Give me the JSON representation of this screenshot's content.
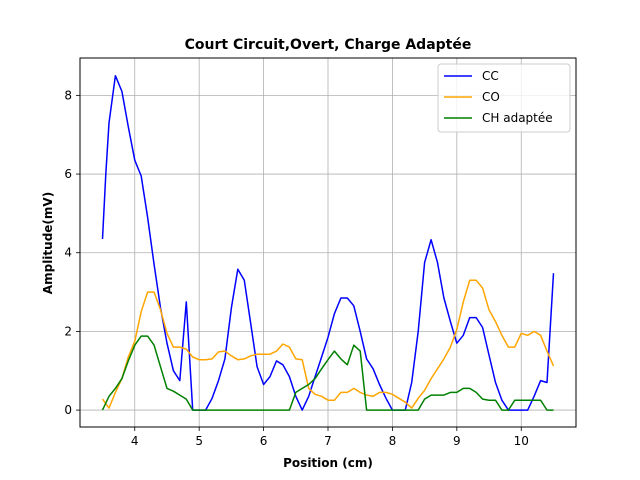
{
  "chart_data": {
    "type": "line",
    "title": "Court Circuit,Overt, Charge Adaptée",
    "xlabel": "Position (cm)",
    "ylabel": "Amplitude(mV)",
    "xlim": [
      3.15,
      10.85
    ],
    "ylim": [
      -0.43,
      8.95
    ],
    "xticks": [
      4,
      5,
      6,
      7,
      8,
      9,
      10
    ],
    "yticks": [
      0,
      2,
      4,
      6,
      8
    ],
    "grid": true,
    "legend_position": "top-right",
    "series": [
      {
        "name": "CC",
        "color": "#0000ff",
        "points": [
          [
            3.5,
            4.35
          ],
          [
            3.55,
            6.0
          ],
          [
            3.6,
            7.3
          ],
          [
            3.7,
            8.5
          ],
          [
            3.8,
            8.1
          ],
          [
            3.9,
            7.2
          ],
          [
            4.0,
            6.35
          ],
          [
            4.1,
            5.95
          ],
          [
            4.2,
            4.9
          ],
          [
            4.3,
            3.7
          ],
          [
            4.4,
            2.6
          ],
          [
            4.5,
            1.7
          ],
          [
            4.6,
            1.0
          ],
          [
            4.7,
            0.75
          ],
          [
            4.8,
            2.75
          ],
          [
            4.9,
            0.0
          ],
          [
            5.0,
            0.0
          ],
          [
            5.1,
            0.0
          ],
          [
            5.2,
            0.3
          ],
          [
            5.3,
            0.75
          ],
          [
            5.4,
            1.3
          ],
          [
            5.5,
            2.6
          ],
          [
            5.6,
            3.58
          ],
          [
            5.7,
            3.3
          ],
          [
            5.8,
            2.2
          ],
          [
            5.9,
            1.1
          ],
          [
            6.0,
            0.65
          ],
          [
            6.1,
            0.85
          ],
          [
            6.2,
            1.25
          ],
          [
            6.3,
            1.15
          ],
          [
            6.4,
            0.85
          ],
          [
            6.5,
            0.35
          ],
          [
            6.6,
            0.0
          ],
          [
            6.7,
            0.35
          ],
          [
            6.8,
            0.85
          ],
          [
            6.9,
            1.35
          ],
          [
            7.0,
            1.85
          ],
          [
            7.1,
            2.45
          ],
          [
            7.2,
            2.85
          ],
          [
            7.3,
            2.85
          ],
          [
            7.4,
            2.65
          ],
          [
            7.5,
            2.0
          ],
          [
            7.6,
            1.3
          ],
          [
            7.7,
            1.05
          ],
          [
            7.8,
            0.65
          ],
          [
            7.9,
            0.3
          ],
          [
            8.0,
            0.0
          ],
          [
            8.1,
            0.0
          ],
          [
            8.2,
            0.0
          ],
          [
            8.3,
            0.7
          ],
          [
            8.4,
            2.0
          ],
          [
            8.5,
            3.75
          ],
          [
            8.6,
            4.33
          ],
          [
            8.7,
            3.75
          ],
          [
            8.8,
            2.85
          ],
          [
            8.9,
            2.25
          ],
          [
            9.0,
            1.7
          ],
          [
            9.1,
            1.9
          ],
          [
            9.2,
            2.35
          ],
          [
            9.3,
            2.35
          ],
          [
            9.4,
            2.1
          ],
          [
            9.5,
            1.4
          ],
          [
            9.6,
            0.7
          ],
          [
            9.7,
            0.25
          ],
          [
            9.8,
            0.0
          ],
          [
            9.9,
            0.0
          ],
          [
            10.0,
            0.0
          ],
          [
            10.1,
            0.0
          ],
          [
            10.2,
            0.35
          ],
          [
            10.3,
            0.75
          ],
          [
            10.4,
            0.7
          ],
          [
            10.5,
            3.48
          ]
        ]
      },
      {
        "name": "CO",
        "color": "#ffa500",
        "points": [
          [
            3.5,
            0.28
          ],
          [
            3.6,
            0.05
          ],
          [
            3.7,
            0.45
          ],
          [
            3.8,
            0.8
          ],
          [
            3.9,
            1.35
          ],
          [
            4.0,
            1.75
          ],
          [
            4.1,
            2.5
          ],
          [
            4.2,
            3.0
          ],
          [
            4.3,
            3.0
          ],
          [
            4.4,
            2.55
          ],
          [
            4.5,
            1.95
          ],
          [
            4.6,
            1.6
          ],
          [
            4.7,
            1.6
          ],
          [
            4.8,
            1.55
          ],
          [
            4.9,
            1.35
          ],
          [
            5.0,
            1.28
          ],
          [
            5.1,
            1.28
          ],
          [
            5.2,
            1.3
          ],
          [
            5.3,
            1.48
          ],
          [
            5.4,
            1.5
          ],
          [
            5.5,
            1.38
          ],
          [
            5.6,
            1.28
          ],
          [
            5.7,
            1.3
          ],
          [
            5.8,
            1.38
          ],
          [
            5.9,
            1.42
          ],
          [
            6.0,
            1.42
          ],
          [
            6.1,
            1.42
          ],
          [
            6.2,
            1.5
          ],
          [
            6.3,
            1.68
          ],
          [
            6.4,
            1.6
          ],
          [
            6.5,
            1.3
          ],
          [
            6.6,
            1.28
          ],
          [
            6.7,
            0.55
          ],
          [
            6.8,
            0.4
          ],
          [
            6.9,
            0.35
          ],
          [
            7.0,
            0.25
          ],
          [
            7.1,
            0.25
          ],
          [
            7.2,
            0.45
          ],
          [
            7.3,
            0.45
          ],
          [
            7.4,
            0.55
          ],
          [
            7.5,
            0.45
          ],
          [
            7.6,
            0.38
          ],
          [
            7.7,
            0.35
          ],
          [
            7.8,
            0.45
          ],
          [
            7.9,
            0.45
          ],
          [
            8.0,
            0.4
          ],
          [
            8.1,
            0.3
          ],
          [
            8.2,
            0.2
          ],
          [
            8.3,
            0.05
          ],
          [
            8.4,
            0.3
          ],
          [
            8.5,
            0.5
          ],
          [
            8.6,
            0.8
          ],
          [
            8.7,
            1.05
          ],
          [
            8.8,
            1.3
          ],
          [
            8.9,
            1.6
          ],
          [
            9.0,
            2.05
          ],
          [
            9.1,
            2.75
          ],
          [
            9.2,
            3.3
          ],
          [
            9.3,
            3.3
          ],
          [
            9.4,
            3.1
          ],
          [
            9.5,
            2.55
          ],
          [
            9.6,
            2.25
          ],
          [
            9.7,
            1.9
          ],
          [
            9.8,
            1.6
          ],
          [
            9.9,
            1.6
          ],
          [
            10.0,
            1.95
          ],
          [
            10.1,
            1.9
          ],
          [
            10.2,
            2.0
          ],
          [
            10.3,
            1.9
          ],
          [
            10.4,
            1.5
          ],
          [
            10.5,
            1.12
          ]
        ]
      },
      {
        "name": "CH adaptée",
        "color": "#008000",
        "points": [
          [
            3.5,
            0.0
          ],
          [
            3.6,
            0.35
          ],
          [
            3.7,
            0.55
          ],
          [
            3.8,
            0.8
          ],
          [
            3.9,
            1.25
          ],
          [
            4.0,
            1.65
          ],
          [
            4.1,
            1.88
          ],
          [
            4.2,
            1.88
          ],
          [
            4.3,
            1.65
          ],
          [
            4.4,
            1.1
          ],
          [
            4.5,
            0.55
          ],
          [
            4.6,
            0.48
          ],
          [
            4.7,
            0.38
          ],
          [
            4.8,
            0.28
          ],
          [
            4.9,
            0.0
          ],
          [
            5.0,
            0.0
          ],
          [
            5.5,
            0.0
          ],
          [
            6.0,
            0.0
          ],
          [
            6.4,
            0.0
          ],
          [
            6.5,
            0.45
          ],
          [
            6.6,
            0.55
          ],
          [
            6.7,
            0.65
          ],
          [
            6.8,
            0.8
          ],
          [
            6.9,
            1.05
          ],
          [
            7.0,
            1.28
          ],
          [
            7.1,
            1.5
          ],
          [
            7.2,
            1.3
          ],
          [
            7.3,
            1.15
          ],
          [
            7.4,
            1.65
          ],
          [
            7.5,
            1.5
          ],
          [
            7.6,
            0.0
          ],
          [
            7.7,
            0.0
          ],
          [
            8.0,
            0.0
          ],
          [
            8.3,
            0.0
          ],
          [
            8.4,
            0.0
          ],
          [
            8.5,
            0.28
          ],
          [
            8.6,
            0.38
          ],
          [
            8.7,
            0.38
          ],
          [
            8.8,
            0.38
          ],
          [
            8.9,
            0.45
          ],
          [
            9.0,
            0.45
          ],
          [
            9.1,
            0.55
          ],
          [
            9.2,
            0.55
          ],
          [
            9.3,
            0.45
          ],
          [
            9.4,
            0.28
          ],
          [
            9.5,
            0.25
          ],
          [
            9.6,
            0.25
          ],
          [
            9.7,
            0.0
          ],
          [
            9.8,
            0.0
          ],
          [
            9.9,
            0.25
          ],
          [
            10.0,
            0.25
          ],
          [
            10.1,
            0.25
          ],
          [
            10.2,
            0.25
          ],
          [
            10.3,
            0.25
          ],
          [
            10.4,
            0.0
          ],
          [
            10.5,
            0.0
          ]
        ]
      }
    ]
  }
}
